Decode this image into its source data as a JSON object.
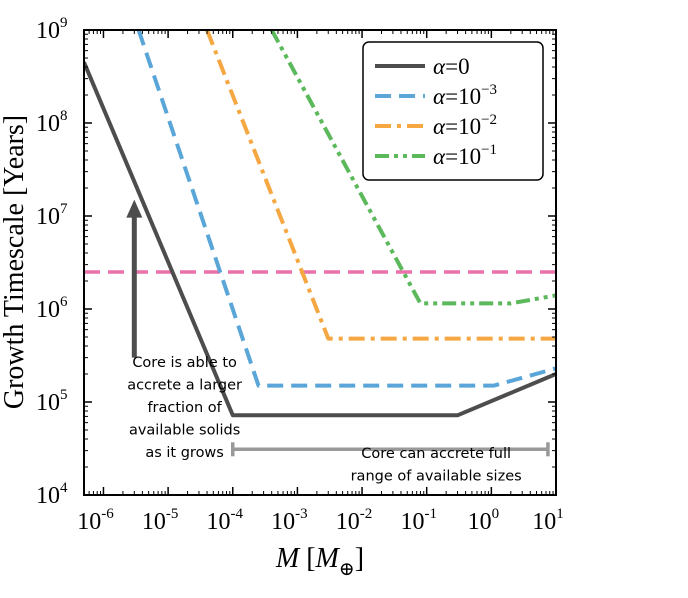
{
  "chart_data": {
    "type": "line",
    "x_scale": "log",
    "y_scale": "log",
    "xlim": [
      5e-07,
      10
    ],
    "ylim": [
      10000,
      1000000000
    ],
    "xlabel": {
      "italic_var": "M",
      "bracket_open": "[",
      "unit_var": "M",
      "unit_sub": "⊕",
      "bracket_close": "]"
    },
    "ylabel": "Growth Timescale [Years]",
    "x_ticks": [
      {
        "value": 1e-06,
        "base": "10",
        "exp": "-6"
      },
      {
        "value": 1e-05,
        "base": "10",
        "exp": "-5"
      },
      {
        "value": 0.0001,
        "base": "10",
        "exp": "-4"
      },
      {
        "value": 0.001,
        "base": "10",
        "exp": "-3"
      },
      {
        "value": 0.01,
        "base": "10",
        "exp": "-2"
      },
      {
        "value": 0.1,
        "base": "10",
        "exp": "-1"
      },
      {
        "value": 1,
        "base": "10",
        "exp": "0"
      },
      {
        "value": 10,
        "base": "10",
        "exp": "1"
      }
    ],
    "y_ticks": [
      {
        "value": 10000.0,
        "base": "10",
        "exp": "4"
      },
      {
        "value": 100000.0,
        "base": "10",
        "exp": "5"
      },
      {
        "value": 1000000.0,
        "base": "10",
        "exp": "6"
      },
      {
        "value": 10000000.0,
        "base": "10",
        "exp": "7"
      },
      {
        "value": 100000000.0,
        "base": "10",
        "exp": "8"
      },
      {
        "value": 1000000000.0,
        "base": "10",
        "exp": "9"
      }
    ],
    "series": [
      {
        "name": "alpha-0",
        "label_var": "α",
        "label_eq": "=",
        "label_base": "0",
        "label_exp": "",
        "color": "#4d4d4d",
        "dash": "solid",
        "x": [
          5e-07,
          0.0001,
          0.3,
          10
        ],
        "y": [
          450000000,
          72000,
          72000,
          200000
        ]
      },
      {
        "name": "alpha-1e-3",
        "label_var": "α",
        "label_eq": "=",
        "label_base": "10",
        "label_exp": "−3",
        "color": "#5aa6d8",
        "dash": "dashed",
        "x": [
          3.5e-06,
          0.00025,
          1.1,
          10
        ],
        "y": [
          1000000000,
          150000,
          150000,
          230000
        ]
      },
      {
        "name": "alpha-1e-2",
        "label_var": "α",
        "label_eq": "=",
        "label_base": "10",
        "label_exp": "−2",
        "color": "#f5a742",
        "dash": "dashdot",
        "x": [
          4e-05,
          0.003,
          10
        ],
        "y": [
          1000000000,
          480000,
          480000
        ]
      },
      {
        "name": "alpha-1e-1",
        "label_var": "α",
        "label_eq": "=",
        "label_base": "10",
        "label_exp": "−1",
        "color": "#5bb85b",
        "dash": "dashdotdot",
        "x": [
          0.0004,
          0.08,
          2.0,
          10
        ],
        "y": [
          1000000000,
          1150000,
          1150000,
          1400000
        ]
      }
    ],
    "reference_line": {
      "y": 2500000,
      "color": "#e971a8",
      "dash": "dashed"
    },
    "range_bar": {
      "x_start": 0.0001,
      "x_end": 7.5,
      "y": 31000,
      "color": "#999999"
    },
    "arrow": {
      "x": 3e-06,
      "y_start": 300000,
      "y_end": 15000000,
      "color": "#4d4d4d"
    },
    "annotations": {
      "left": [
        "Core is able to",
        "accrete a larger",
        "fraction of",
        "available solids",
        "as it grows"
      ],
      "bottom": [
        "Core can accrete full",
        "range of available sizes"
      ]
    },
    "legend_position": "top-right",
    "grid": false
  }
}
